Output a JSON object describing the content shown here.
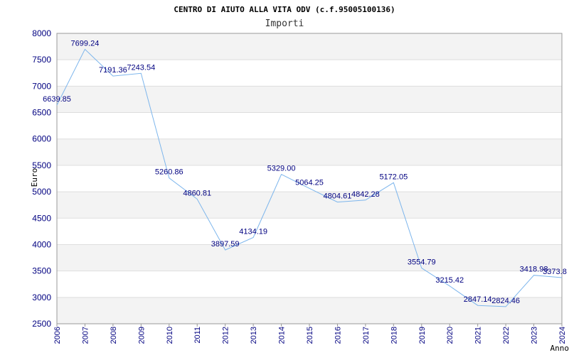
{
  "chart_data": {
    "type": "line",
    "title": "CENTRO DI AIUTO ALLA VITA ODV (c.f.95005100136)",
    "subtitle": "Importi",
    "xlabel": "Anno",
    "ylabel": "Euro",
    "ylim": [
      2500,
      8000
    ],
    "yticks": [
      2500,
      3000,
      3500,
      4000,
      4500,
      5000,
      5500,
      6000,
      6500,
      7000,
      7500,
      8000
    ],
    "xticks": [
      "2006",
      "2007",
      "2008",
      "2009",
      "2010",
      "2011",
      "2012",
      "2013",
      "2014",
      "2015",
      "2016",
      "2017",
      "2018",
      "2019",
      "2020",
      "2021",
      "2022",
      "2023",
      "2024"
    ],
    "grid": true,
    "series": [
      {
        "name": "Importi",
        "color": "#7cb5ec",
        "x": [
          "2006",
          "2007",
          "2008",
          "2009",
          "2010",
          "2011",
          "2012",
          "2013",
          "2014",
          "2015",
          "2016",
          "2017",
          "2018",
          "2019",
          "2020",
          "2021",
          "2022",
          "2023",
          "2024"
        ],
        "values": [
          6639.85,
          7699.24,
          7191.36,
          7243.54,
          5260.86,
          4860.81,
          3897.59,
          4134.19,
          5329.0,
          5064.25,
          4804.61,
          4842.28,
          5172.05,
          3554.79,
          3215.42,
          2847.14,
          2824.46,
          3418.98,
          3373.8
        ],
        "labels": [
          "6639.85",
          "7699.24",
          "7191.36",
          "7243.54",
          "5260.86",
          "4860.81",
          "3897.59",
          "4134.19",
          "5329.00",
          "5064.25",
          "4804.61",
          "4842.28",
          "5172.05",
          "3554.79",
          "3215.42",
          "2847.14",
          "2824.46",
          "3418.98",
          "3373.8"
        ]
      }
    ]
  }
}
